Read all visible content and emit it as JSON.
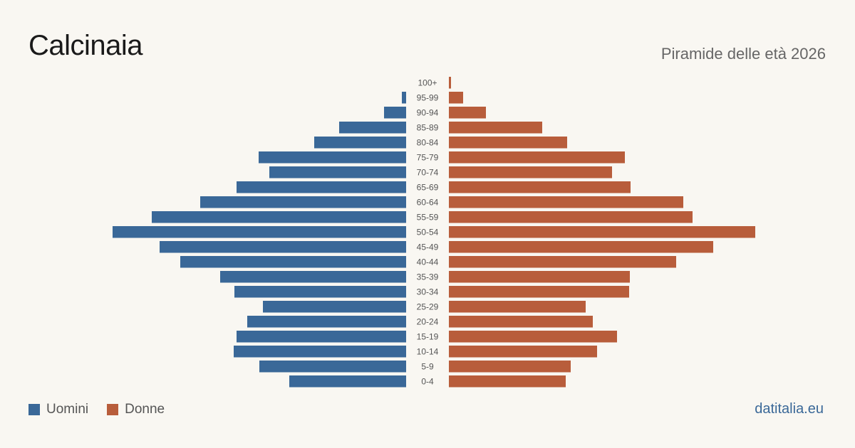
{
  "header": {
    "title": "Calcinaia",
    "subtitle": "Piramide delle età 2026"
  },
  "legend": {
    "men_label": "Uomini",
    "women_label": "Donne"
  },
  "colors": {
    "men": "#3a6898",
    "women": "#b85d3b",
    "label": "#555555"
  },
  "brand": "datitalia.eu",
  "chart_data": {
    "type": "bar",
    "orientation": "horizontal-pyramid",
    "categories": [
      "100+",
      "95-99",
      "90-94",
      "85-89",
      "80-84",
      "75-79",
      "70-74",
      "65-69",
      "60-64",
      "55-59",
      "50-54",
      "45-49",
      "40-44",
      "35-39",
      "30-34",
      "25-29",
      "20-24",
      "15-19",
      "10-14",
      "5-9",
      "0-4"
    ],
    "series": [
      {
        "name": "Uomini",
        "values": [
          0,
          6,
          31,
          94,
          129,
          207,
          192,
          238,
          289,
          357,
          412,
          346,
          317,
          261,
          241,
          201,
          223,
          238,
          242,
          206,
          164
        ]
      },
      {
        "name": "Donne",
        "values": [
          3,
          20,
          52,
          131,
          166,
          247,
          229,
          255,
          329,
          342,
          430,
          371,
          319,
          254,
          253,
          192,
          202,
          236,
          208,
          171,
          164
        ]
      }
    ],
    "title": "Piramide delle età 2026",
    "xlabel": "",
    "ylabel": ""
  }
}
